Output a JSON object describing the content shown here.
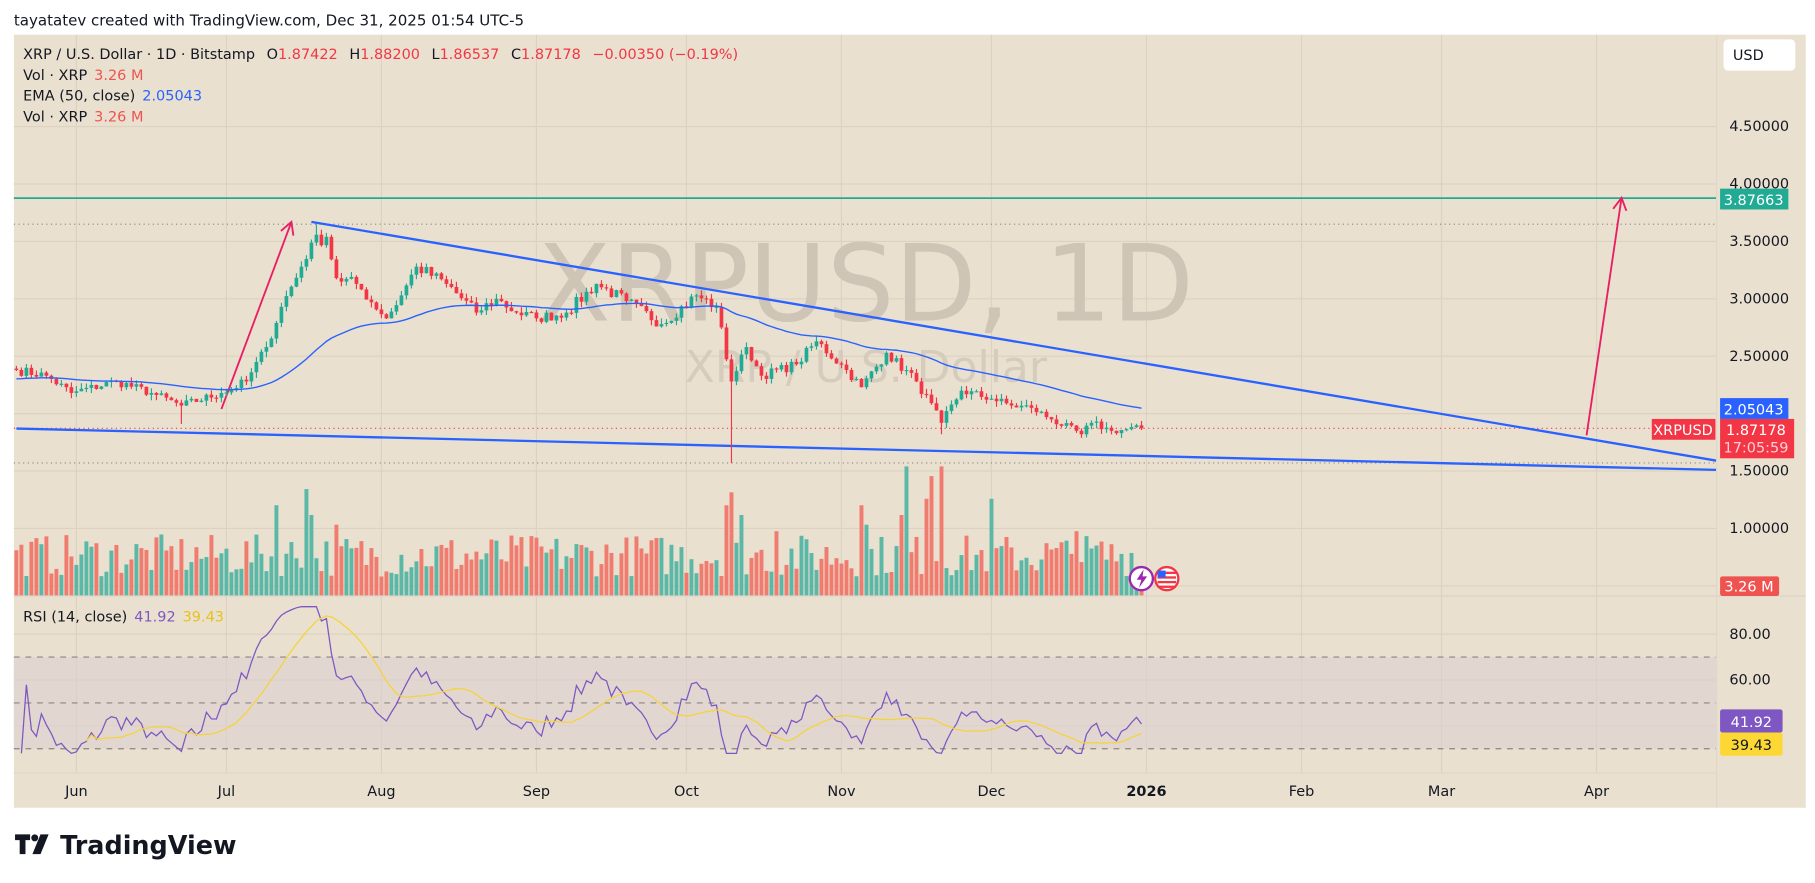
{
  "header": {
    "credit": "tayatatev created with TradingView.com, Dec 31, 2025 01:54 UTC-5"
  },
  "legend": {
    "symbol": "XRP / U.S. Dollar · 1D · Bitstamp",
    "o_label": "O",
    "o": "1.87422",
    "h_label": "H",
    "h": "1.88200",
    "l_label": "L",
    "l": "1.86537",
    "c_label": "C",
    "c": "1.87178",
    "change": "−0.00350 (−0.19%)",
    "vol_label": "Vol · XRP",
    "vol": "3.26 M",
    "ema_label": "EMA (50, close)",
    "ema": "2.05043",
    "vol2_label": "Vol · XRP",
    "vol2": "3.26 M"
  },
  "currency_button": "USD",
  "watermark": {
    "title": "XRPUSD, 1D",
    "subtitle": "XRP / U.S. Dollar"
  },
  "price_axis": {
    "ticks": [
      "4.50000",
      "4.00000",
      "3.50000",
      "3.00000",
      "2.50000",
      "1.50000",
      "1.00000"
    ],
    "tick_values": [
      4.5,
      4.0,
      3.5,
      3.0,
      2.5,
      1.5,
      1.0
    ],
    "target_label": "3.87663",
    "ema_label": "2.05043",
    "symbol_tag": "XRPUSD",
    "last_price": "1.87178",
    "countdown": "17:05:59",
    "volume_label": "3.26 M"
  },
  "rsi": {
    "label": "RSI (14, close)",
    "value": "41.92",
    "ma_value": "39.43",
    "ticks": [
      "80.00",
      "60.00"
    ],
    "tick_values": [
      80,
      60
    ],
    "bands": [
      70,
      50,
      30
    ]
  },
  "time_axis": {
    "labels": [
      "Jun",
      "Jul",
      "Aug",
      "Sep",
      "Oct",
      "Nov",
      "Dec",
      "2026",
      "Feb",
      "Mar",
      "Apr"
    ],
    "label_days": [
      0,
      30,
      61,
      92,
      122,
      153,
      183,
      214,
      245,
      273,
      304
    ]
  },
  "footer": {
    "logo_text": "TradingView"
  },
  "colors": {
    "up": "#22ab94",
    "down": "#f23645",
    "vol_up": "#5cb8a6",
    "vol_down": "#f07c70",
    "ema": "#2962ff",
    "trend": "#2962ff",
    "target": "#22ab94",
    "arrow": "#e91e63",
    "rsi": "#7e57c2",
    "rsi_ma": "#f5d33b",
    "bg": "#eae0d0"
  },
  "chart_data": {
    "type": "candlestick",
    "symbol": "XRPUSD",
    "interval": "1D",
    "day0": "Jun 1 2025",
    "close_keypoints": [
      [
        -12,
        2.38
      ],
      [
        -6,
        2.33
      ],
      [
        -1,
        2.18
      ],
      [
        8,
        2.28
      ],
      [
        15,
        2.18
      ],
      [
        21,
        2.07
      ],
      [
        29,
        2.18
      ],
      [
        34,
        2.28
      ],
      [
        38,
        2.58
      ],
      [
        41,
        2.93
      ],
      [
        45,
        3.28
      ],
      [
        47,
        3.49
      ],
      [
        50,
        3.54
      ],
      [
        52,
        3.18
      ],
      [
        56,
        3.13
      ],
      [
        62,
        2.83
      ],
      [
        65,
        3.03
      ],
      [
        68,
        3.28
      ],
      [
        74,
        3.13
      ],
      [
        80,
        2.88
      ],
      [
        84,
        3.0
      ],
      [
        88,
        2.88
      ],
      [
        92,
        2.83
      ],
      [
        98,
        2.88
      ],
      [
        104,
        3.13
      ],
      [
        110,
        2.98
      ],
      [
        117,
        2.78
      ],
      [
        124,
        3.03
      ],
      [
        128,
        2.93
      ],
      [
        131,
        2.28
      ],
      [
        134,
        2.58
      ],
      [
        137,
        2.33
      ],
      [
        144,
        2.43
      ],
      [
        148,
        2.63
      ],
      [
        154,
        2.38
      ],
      [
        157,
        2.23
      ],
      [
        162,
        2.53
      ],
      [
        168,
        2.28
      ],
      [
        173,
        1.92
      ],
      [
        177,
        2.2
      ],
      [
        183,
        2.13
      ],
      [
        187,
        2.07
      ],
      [
        191,
        2.05
      ],
      [
        195,
        1.95
      ],
      [
        201,
        1.82
      ],
      [
        203,
        1.92
      ],
      [
        207,
        1.85
      ],
      [
        213,
        1.87178
      ]
    ],
    "extreme_wicks": [
      [
        48,
        null,
        3.65
      ],
      [
        131,
        1.57,
        null
      ],
      [
        21,
        1.91,
        null
      ],
      [
        173,
        1.82,
        null
      ]
    ],
    "volume_spikes_m": [
      [
        40,
        28
      ],
      [
        46,
        33
      ],
      [
        47,
        25
      ],
      [
        52,
        22
      ],
      [
        130,
        28
      ],
      [
        131,
        32
      ],
      [
        133,
        25
      ],
      [
        140,
        20
      ],
      [
        157,
        28
      ],
      [
        158,
        22
      ],
      [
        165,
        25
      ],
      [
        166,
        40
      ],
      [
        170,
        30
      ],
      [
        171,
        37
      ],
      [
        173,
        40
      ],
      [
        183,
        30
      ],
      [
        200,
        20
      ],
      [
        213,
        3.26
      ]
    ],
    "ema_period": 50,
    "rsi_period": 14,
    "horizontal_levels": [
      3.87663,
      3.65,
      1.57
    ],
    "trendlines": [
      {
        "name": "upper",
        "from": [
          47,
          3.67
        ],
        "to": [
          329,
          1.59
        ]
      },
      {
        "name": "lower",
        "from": [
          -12,
          1.87
        ],
        "to": [
          329,
          1.51
        ]
      }
    ],
    "arrows": [
      {
        "from": [
          29,
          2.04
        ],
        "to": [
          43,
          3.67
        ]
      },
      {
        "from": [
          302,
          1.81
        ],
        "to": [
          309,
          3.88
        ]
      }
    ],
    "ylim": [
      0.5,
      4.8
    ],
    "xlim_days": [
      -12.5,
      329
    ]
  }
}
